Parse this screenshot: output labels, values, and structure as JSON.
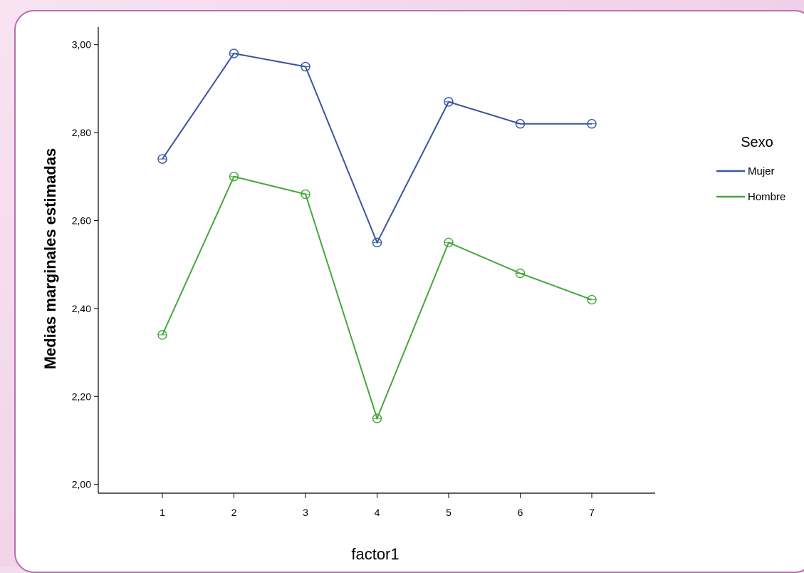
{
  "chart_data": {
    "type": "line",
    "title": "",
    "xlabel": "factor1",
    "ylabel": "Medias marginales estimadas",
    "x": [
      1,
      2,
      3,
      4,
      5,
      6,
      7
    ],
    "x_tick_labels": [
      "1",
      "2",
      "3",
      "4",
      "5",
      "6",
      "7"
    ],
    "ylim": [
      1.98,
      3.04
    ],
    "y_ticks": [
      2.0,
      2.2,
      2.4,
      2.6,
      2.8,
      3.0
    ],
    "y_tick_labels": [
      "2,00",
      "2,20",
      "2,40",
      "2,60",
      "2,80",
      "3,00"
    ],
    "grid": false,
    "legend": {
      "title": "Sexo",
      "placement": "right"
    },
    "series": [
      {
        "name": "Mujer",
        "color": "#3a55a0",
        "values": [
          2.74,
          2.98,
          2.95,
          2.55,
          2.87,
          2.82,
          2.82
        ]
      },
      {
        "name": "Hombre",
        "color": "#44a83a",
        "values": [
          2.34,
          2.7,
          2.66,
          2.15,
          2.55,
          2.48,
          2.42
        ]
      }
    ]
  }
}
